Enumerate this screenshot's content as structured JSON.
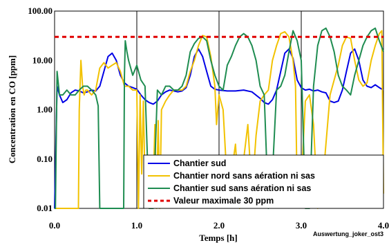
{
  "chart_data": {
    "type": "line",
    "title": "",
    "xlabel": "Temps [h]",
    "ylabel": "Concentration en CO [ppm]",
    "credit": "Auswertung_joker_ost3",
    "xlim": [
      0,
      4
    ],
    "ylim": [
      0.01,
      100
    ],
    "y_scale": "log",
    "grid": "vertical",
    "legend_position": "bottom-right",
    "x_ticks": [
      "0.0",
      "1.0",
      "2.0",
      "3.0",
      "4.0"
    ],
    "y_ticks": [
      "0.01",
      "0.10",
      "1.00",
      "10.00",
      "100.00"
    ],
    "series": [
      {
        "name": "Chantier sud",
        "color": "#0000e6",
        "style": "solid",
        "x": [
          0.0,
          0.03,
          0.06,
          0.1,
          0.15,
          0.2,
          0.25,
          0.3,
          0.35,
          0.4,
          0.45,
          0.5,
          0.55,
          0.6,
          0.65,
          0.7,
          0.75,
          0.8,
          0.85,
          0.9,
          0.95,
          1.0,
          1.05,
          1.1,
          1.15,
          1.2,
          1.25,
          1.3,
          1.35,
          1.4,
          1.45,
          1.5,
          1.55,
          1.6,
          1.65,
          1.7,
          1.75,
          1.8,
          1.85,
          1.9,
          1.95,
          2.0,
          2.1,
          2.2,
          2.3,
          2.4,
          2.5,
          2.55,
          2.6,
          2.65,
          2.7,
          2.75,
          2.8,
          2.85,
          2.9,
          2.95,
          3.0,
          3.05,
          3.1,
          3.15,
          3.2,
          3.25,
          3.3,
          3.35,
          3.4,
          3.45,
          3.5,
          3.55,
          3.6,
          3.65,
          3.7,
          3.75,
          3.8,
          3.85,
          3.9,
          3.95,
          4.0
        ],
        "y": [
          0.01,
          3.0,
          2.0,
          1.4,
          1.6,
          2.2,
          2.5,
          2.4,
          2.2,
          2.3,
          2.5,
          2.4,
          3.0,
          6.0,
          12.0,
          14.0,
          10.0,
          5.0,
          3.5,
          3.0,
          2.8,
          2.6,
          2.0,
          1.6,
          1.4,
          1.3,
          1.5,
          2.0,
          2.3,
          2.5,
          2.4,
          2.3,
          2.4,
          2.8,
          5.0,
          12.0,
          17.0,
          12.0,
          6.0,
          3.0,
          2.6,
          2.5,
          2.4,
          2.4,
          2.5,
          2.3,
          1.7,
          1.4,
          1.3,
          1.6,
          2.5,
          6.0,
          14.0,
          17.0,
          11.0,
          4.0,
          2.8,
          2.5,
          2.6,
          2.4,
          2.5,
          2.3,
          2.2,
          1.5,
          1.4,
          1.5,
          2.5,
          6.0,
          14.0,
          17.0,
          10.0,
          4.0,
          3.0,
          2.8,
          3.2,
          2.8,
          2.5
        ]
      },
      {
        "name": "Chantier nord sans aération ni sas",
        "color": "#f2c200",
        "style": "solid",
        "x": [
          0.0,
          0.05,
          0.1,
          0.15,
          0.2,
          0.25,
          0.29,
          0.3,
          0.32,
          0.34,
          0.36,
          0.38,
          0.4,
          0.45,
          0.5,
          0.55,
          0.6,
          0.65,
          0.7,
          0.75,
          0.8,
          0.85,
          0.9,
          0.95,
          1.0,
          1.02,
          1.04,
          1.06,
          1.08,
          1.1,
          1.15,
          1.2,
          1.22,
          1.24,
          1.26,
          1.28,
          1.3,
          1.35,
          1.4,
          1.45,
          1.5,
          1.55,
          1.6,
          1.65,
          1.7,
          1.75,
          1.8,
          1.85,
          1.9,
          1.95,
          1.97,
          2.0,
          2.05,
          2.1,
          2.15,
          2.2,
          2.25,
          2.3,
          2.35,
          2.4,
          2.45,
          2.5,
          2.55,
          2.6,
          2.65,
          2.7,
          2.75,
          2.8,
          2.85,
          2.9,
          2.93,
          2.95,
          2.98,
          3.0,
          3.05,
          3.1,
          3.15,
          3.2,
          3.25,
          3.3,
          3.35,
          3.4,
          3.45,
          3.5,
          3.55,
          3.6,
          3.65,
          3.7,
          3.75,
          3.8,
          3.85,
          3.9,
          3.95,
          3.98,
          4.0
        ],
        "y": [
          0.01,
          0.01,
          0.01,
          0.01,
          0.01,
          0.01,
          0.01,
          1.0,
          10.0,
          3.0,
          2.0,
          2.5,
          2.5,
          2.0,
          2.5,
          7.0,
          9.0,
          7.0,
          8.0,
          9.0,
          6.0,
          3.0,
          3.0,
          2.5,
          2.5,
          0.01,
          2.0,
          0.05,
          1.5,
          0.03,
          0.01,
          0.03,
          0.5,
          0.01,
          0.6,
          0.01,
          1.0,
          1.5,
          2.0,
          2.5,
          2.5,
          2.5,
          3.0,
          6.0,
          10.0,
          20.0,
          32.0,
          30.0,
          12.0,
          3.0,
          0.5,
          2.0,
          1.0,
          0.03,
          0.05,
          0.2,
          0.01,
          0.1,
          0.5,
          0.02,
          0.3,
          1.5,
          2.0,
          2.5,
          10.0,
          20.0,
          35.0,
          38.0,
          30.0,
          10.0,
          3.0,
          0.02,
          0.1,
          0.03,
          1.5,
          2.0,
          0.5,
          0.01,
          0.02,
          0.2,
          2.0,
          4.0,
          8.0,
          20.0,
          30.0,
          28.0,
          10.0,
          4.0,
          3.0,
          3.5,
          10.0,
          20.0,
          35.0,
          40.0,
          0.02
        ]
      },
      {
        "name": "Chantier sud sans aération ni sas",
        "color": "#1e8c50",
        "style": "solid",
        "x": [
          0.0,
          0.01,
          0.03,
          0.06,
          0.1,
          0.15,
          0.2,
          0.25,
          0.3,
          0.35,
          0.4,
          0.45,
          0.5,
          0.53,
          0.55,
          0.58,
          0.6,
          0.65,
          0.7,
          0.75,
          0.8,
          0.84,
          0.85,
          0.86,
          0.88,
          0.9,
          0.95,
          1.0,
          1.05,
          1.1,
          1.15,
          1.2,
          1.25,
          1.3,
          1.35,
          1.4,
          1.45,
          1.5,
          1.55,
          1.6,
          1.65,
          1.7,
          1.75,
          1.8,
          1.85,
          1.9,
          1.95,
          2.0,
          2.05,
          2.1,
          2.15,
          2.2,
          2.25,
          2.3,
          2.35,
          2.4,
          2.45,
          2.5,
          2.55,
          2.6,
          2.65,
          2.7,
          2.75,
          2.8,
          2.85,
          2.9,
          2.95,
          3.0,
          3.05,
          3.1,
          3.15,
          3.2,
          3.25,
          3.3,
          3.35,
          3.4,
          3.45,
          3.5,
          3.55,
          3.6,
          3.65,
          3.7,
          3.75,
          3.8,
          3.85,
          3.9,
          3.95,
          4.0
        ],
        "y": [
          0.01,
          0.01,
          6.0,
          2.0,
          2.0,
          2.5,
          2.0,
          2.0,
          2.5,
          3.0,
          3.0,
          2.5,
          2.0,
          1.2,
          0.01,
          0.01,
          0.01,
          0.01,
          0.01,
          0.01,
          0.01,
          0.01,
          5.0,
          25.0,
          15.0,
          10.0,
          5.0,
          8.0,
          4.0,
          3.0,
          0.01,
          0.01,
          2.5,
          2.0,
          3.0,
          3.0,
          2.5,
          2.5,
          3.0,
          5.0,
          15.0,
          22.0,
          28.0,
          30.0,
          25.0,
          10.0,
          5.0,
          3.0,
          2.5,
          8.0,
          12.0,
          20.0,
          30.0,
          35.0,
          30.0,
          20.0,
          10.0,
          3.0,
          2.0,
          0.01,
          0.05,
          2.5,
          3.0,
          5.0,
          15.0,
          40.0,
          25.0,
          10.0,
          0.01,
          0.01,
          3.0,
          20.0,
          40.0,
          45.0,
          30.0,
          15.0,
          5.0,
          3.0,
          2.5,
          2.0,
          5.0,
          10.0,
          20.0,
          30.0,
          40.0,
          45.0,
          25.0,
          15.0
        ]
      },
      {
        "name": "Valeur maximale 30 ppm",
        "color": "#e00000",
        "style": "dashed",
        "x": [
          0,
          4
        ],
        "y": [
          30,
          30
        ]
      }
    ]
  }
}
